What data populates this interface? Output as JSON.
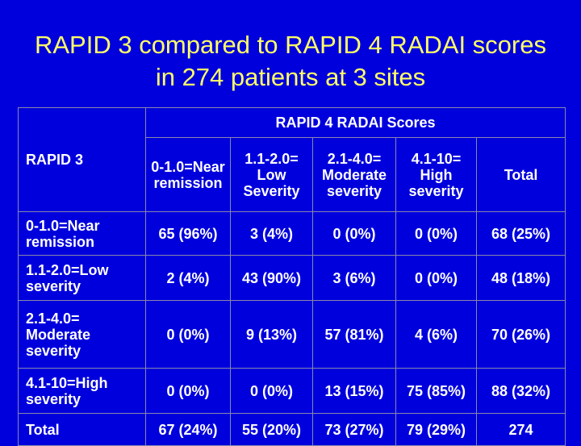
{
  "title": "RAPID 3 compared to RAPID 4 RADAI scores in 274 patients at 3 sites",
  "table": {
    "corner": "RAPID 3",
    "group_header": "RAPID 4 RADAI Scores",
    "columns": [
      "0-1.0=Near remission",
      "1.1-2.0= Low Severity",
      "2.1-4.0= Moderate severity",
      "4.1-10= High severity",
      "Total"
    ],
    "rows": [
      [
        "0-1.0=Near remission",
        "65 (96%)",
        "3 (4%)",
        "0 (0%)",
        "0 (0%)",
        "68 (25%)"
      ],
      [
        "1.1-2.0=Low severity",
        "2 (4%)",
        "43 (90%)",
        "3 (6%)",
        "0 (0%)",
        "48 (18%)"
      ],
      [
        "2.1-4.0= Moderate severity",
        "0 (0%)",
        "9 (13%)",
        "57 (81%)",
        "4 (6%)",
        "70 (26%)"
      ],
      [
        "4.1-10=High severity",
        "0 (0%)",
        "0 (0%)",
        "13 (15%)",
        "75 (85%)",
        "88 (32%)"
      ],
      [
        "Total",
        "67 (24%)",
        "55 (20%)",
        "73 (27%)",
        "79 (29%)",
        "274"
      ]
    ]
  }
}
